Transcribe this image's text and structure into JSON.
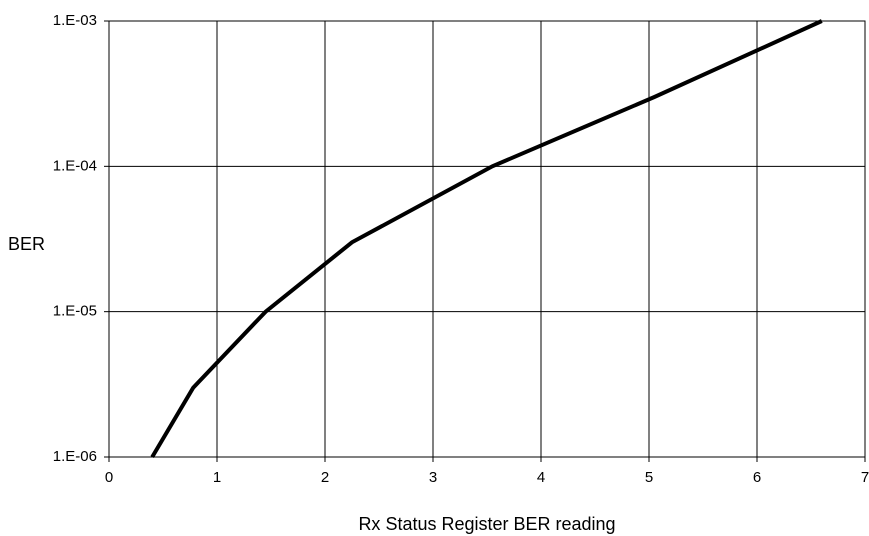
{
  "chart_data": {
    "type": "line",
    "title": "",
    "xlabel": "Rx Status Register BER reading",
    "ylabel": "BER",
    "xlim": [
      0,
      7
    ],
    "ylim": [
      1e-06,
      0.001
    ],
    "y_scale": "log",
    "grid": true,
    "legend": "none",
    "x_ticks": [
      "0",
      "1",
      "2",
      "3",
      "4",
      "5",
      "6",
      "7"
    ],
    "y_ticks": [
      "1.E-06",
      "1.E-05",
      "1.E-04",
      "1.E-03"
    ],
    "series": [
      {
        "color": "#000000",
        "x": [
          0.4,
          0.78,
          1.45,
          2.25,
          3.55,
          5.05,
          6.6
        ],
        "y": [
          1e-06,
          3e-06,
          1e-05,
          3e-05,
          0.0001,
          0.0003,
          0.001
        ]
      }
    ]
  }
}
